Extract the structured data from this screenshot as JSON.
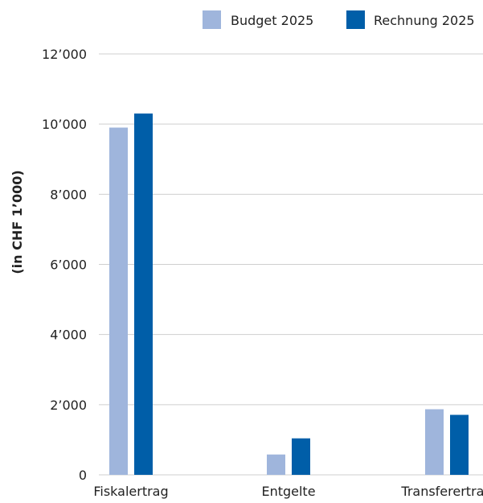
{
  "chart_data": {
    "type": "bar",
    "title": "",
    "xlabel": "",
    "ylabel": "(in CHF 1’000)",
    "categories": [
      "Fiskalertrag",
      "Entgelte",
      "Transferertrag"
    ],
    "series": [
      {
        "name": "Budget 2025",
        "color": "#9fb5dc",
        "values": [
          9900,
          580,
          1870
        ]
      },
      {
        "name": "Rechnung 2025",
        "color": "#005ea8",
        "values": [
          10300,
          1040,
          1710
        ]
      }
    ],
    "ylim": [
      0,
      12000
    ],
    "yticks": [
      0,
      2000,
      4000,
      6000,
      8000,
      10000,
      12000
    ],
    "ytick_labels": [
      "0",
      "2’000",
      "4’000",
      "6’000",
      "8’000",
      "10’000",
      "12’000"
    ],
    "grid": true,
    "legend_position": "top-right"
  }
}
